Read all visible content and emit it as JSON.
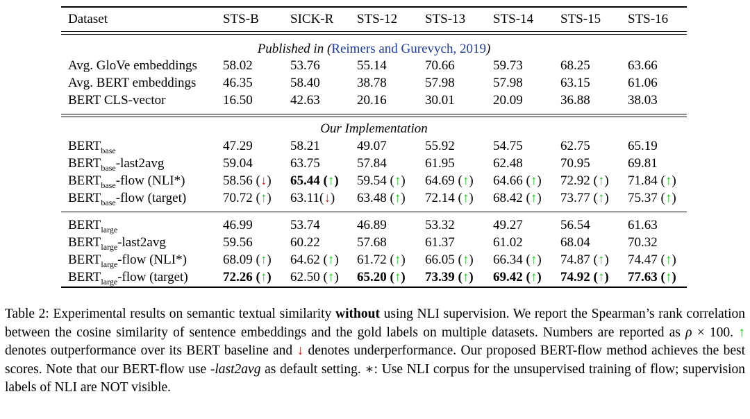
{
  "header": [
    "Dataset",
    "STS-B",
    "SICK-R",
    "STS-12",
    "STS-13",
    "STS-14",
    "STS-15",
    "STS-16"
  ],
  "sections": [
    {
      "title_prefix": "Published in (",
      "title_cite": "Reimers and Gurevych, 2019",
      "title_suffix": ")",
      "rows": [
        {
          "name": "Avg. GloVe embeddings",
          "cells": [
            {
              "v": "58.02"
            },
            {
              "v": "53.76"
            },
            {
              "v": "55.14"
            },
            {
              "v": "70.66"
            },
            {
              "v": "59.73"
            },
            {
              "v": "68.25"
            },
            {
              "v": "63.66"
            }
          ]
        },
        {
          "name": "Avg. BERT embeddings",
          "cells": [
            {
              "v": "46.35"
            },
            {
              "v": "58.40"
            },
            {
              "v": "38.78"
            },
            {
              "v": "57.98"
            },
            {
              "v": "57.98"
            },
            {
              "v": "63.15"
            },
            {
              "v": "61.06"
            }
          ]
        },
        {
          "name": "BERT CLS-vector",
          "cells": [
            {
              "v": "16.50"
            },
            {
              "v": "42.63"
            },
            {
              "v": "20.16"
            },
            {
              "v": "30.01"
            },
            {
              "v": "20.09"
            },
            {
              "v": "36.88"
            },
            {
              "v": "38.03"
            }
          ]
        }
      ]
    },
    {
      "title": "Our Implementation",
      "rows": [
        {
          "base": "BERT",
          "sub": "base",
          "suffix": "",
          "cells": [
            {
              "v": "47.29"
            },
            {
              "v": "58.21"
            },
            {
              "v": "49.07"
            },
            {
              "v": "55.92"
            },
            {
              "v": "54.75"
            },
            {
              "v": "62.75"
            },
            {
              "v": "65.19"
            }
          ]
        },
        {
          "base": "BERT",
          "sub": "base",
          "suffix": "-last2avg",
          "cells": [
            {
              "v": "59.04"
            },
            {
              "v": "63.75"
            },
            {
              "v": "57.84"
            },
            {
              "v": "61.95"
            },
            {
              "v": "62.48"
            },
            {
              "v": "70.95"
            },
            {
              "v": "69.81"
            }
          ]
        },
        {
          "base": "BERT",
          "sub": "base",
          "suffix": "-flow (NLI*)",
          "cells": [
            {
              "v": "58.56",
              "a": "down"
            },
            {
              "v": "65.44",
              "a": "up",
              "bold": true
            },
            {
              "v": "59.54",
              "a": "up"
            },
            {
              "v": "64.69",
              "a": "up"
            },
            {
              "v": "64.66",
              "a": "up"
            },
            {
              "v": "72.92",
              "a": "up"
            },
            {
              "v": "71.84",
              "a": "up"
            }
          ]
        },
        {
          "base": "BERT",
          "sub": "base",
          "suffix": "-flow (target)",
          "cells": [
            {
              "v": "70.72",
              "a": "up"
            },
            {
              "v": "63.11",
              "a": "down",
              "tight": true
            },
            {
              "v": "63.48",
              "a": "up"
            },
            {
              "v": "72.14",
              "a": "up"
            },
            {
              "v": "68.42",
              "a": "up"
            },
            {
              "v": "73.77",
              "a": "up"
            },
            {
              "v": "75.37",
              "a": "up"
            }
          ]
        }
      ]
    },
    {
      "rows": [
        {
          "base": "BERT",
          "sub": "large",
          "suffix": "",
          "cells": [
            {
              "v": "46.99"
            },
            {
              "v": "53.74"
            },
            {
              "v": "46.89"
            },
            {
              "v": "53.32"
            },
            {
              "v": "49.27"
            },
            {
              "v": "56.54"
            },
            {
              "v": "61.63"
            }
          ]
        },
        {
          "base": "BERT",
          "sub": "large",
          "suffix": "-last2avg",
          "cells": [
            {
              "v": "59.56"
            },
            {
              "v": "60.22"
            },
            {
              "v": "57.68"
            },
            {
              "v": "61.37"
            },
            {
              "v": "61.02"
            },
            {
              "v": "68.04"
            },
            {
              "v": "70.32"
            }
          ]
        },
        {
          "base": "BERT",
          "sub": "large",
          "suffix": "-flow (NLI*)",
          "cells": [
            {
              "v": "68.09",
              "a": "up"
            },
            {
              "v": "64.62",
              "a": "up"
            },
            {
              "v": "61.72",
              "a": "up"
            },
            {
              "v": "66.05",
              "a": "up"
            },
            {
              "v": "66.34",
              "a": "up"
            },
            {
              "v": "74.87",
              "a": "up"
            },
            {
              "v": "74.47",
              "a": "up"
            }
          ]
        },
        {
          "base": "BERT",
          "sub": "large",
          "suffix": "-flow (target)",
          "cells": [
            {
              "v": "72.26",
              "a": "up",
              "bold": true
            },
            {
              "v": "62.50",
              "a": "up"
            },
            {
              "v": "65.20",
              "a": "up",
              "bold": true
            },
            {
              "v": "73.39",
              "a": "up",
              "bold": true
            },
            {
              "v": "69.42",
              "a": "up",
              "bold": true
            },
            {
              "v": "74.92",
              "a": "up",
              "bold": true
            },
            {
              "v": "77.63",
              "a": "up",
              "bold": true
            }
          ]
        }
      ]
    }
  ],
  "arrows": {
    "up": "↑",
    "down": "↓"
  },
  "caption": {
    "p1": "Table 2: Experimental results on semantic textual similarity ",
    "p1_bold": "without",
    "p2": " using NLI supervision. We report the Spearman’s rank correlation between the cosine similarity of sentence embeddings and the gold labels on multiple datasets. Numbers are reported as ",
    "rho": "ρ",
    "times": " × 100. ",
    "p3": " denotes outperformance over its BERT baseline and ",
    "p4": " denotes underperformance. Our proposed BERT-flow method achieves the best scores. Note that our BERT-flow use ",
    "p4_italic": "-last2avg",
    "p5": " as default setting. ∗: Use NLI corpus for the unsupervised training of flow; supervision labels of NLI are NOT visible.",
    "up_color": "#1ec81e",
    "down_color": "#d81e1e"
  }
}
